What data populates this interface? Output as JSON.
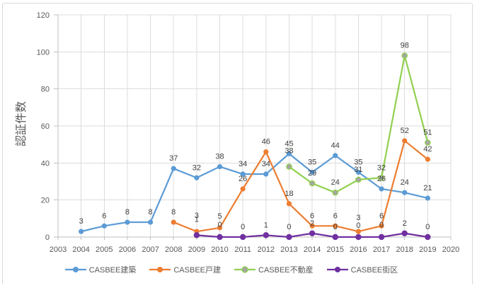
{
  "chart_data": {
    "type": "line",
    "title": "",
    "xlabel": "",
    "ylabel": "認証件数",
    "x": [
      2003,
      2004,
      2005,
      2006,
      2007,
      2008,
      2009,
      2010,
      2011,
      2012,
      2013,
      2014,
      2015,
      2016,
      2017,
      2018,
      2019,
      2020
    ],
    "ylim": [
      0,
      120
    ],
    "y_ticks": [
      0,
      20,
      40,
      60,
      80,
      100,
      120
    ],
    "grid": "both",
    "legend_position": "bottom",
    "series": [
      {
        "name": "CASBEE建築",
        "color": "#5B9BD5",
        "marker_fill": "#5B9BD5",
        "values": [
          null,
          3,
          6,
          8,
          8,
          37,
          32,
          38,
          34,
          34,
          45,
          35,
          44,
          35,
          26,
          24,
          21,
          null
        ]
      },
      {
        "name": "CASBEE戸建",
        "color": "#ED7D31",
        "marker_fill": "#ED7D31",
        "values": [
          null,
          null,
          null,
          null,
          null,
          8,
          3,
          5,
          26,
          46,
          18,
          6,
          6,
          3,
          6,
          52,
          42,
          null
        ]
      },
      {
        "name": "CASBEE不動産",
        "color": "#92D050",
        "marker_fill": "#A5A5A5",
        "values": [
          null,
          null,
          null,
          null,
          null,
          null,
          null,
          null,
          null,
          null,
          38,
          29,
          24,
          31,
          32,
          98,
          51,
          null
        ]
      },
      {
        "name": "CASBEE街区",
        "color": "#7030A0",
        "marker_fill": "#7030A0",
        "values": [
          null,
          null,
          null,
          null,
          null,
          null,
          1,
          0,
          0,
          1,
          0,
          2,
          0,
          0,
          0,
          2,
          0,
          null
        ]
      }
    ],
    "label_color": "#404040",
    "axis_text_color": "#595959"
  }
}
